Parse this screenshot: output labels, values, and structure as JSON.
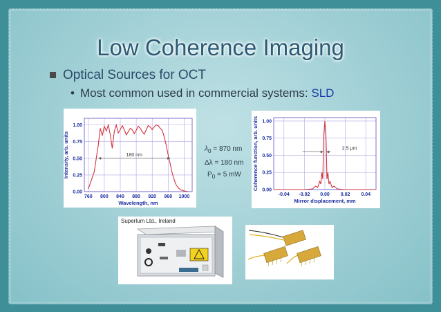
{
  "slide": {
    "title": "Low Coherence Imaging",
    "bullet1": "Optical Sources for OCT",
    "bullet2_prefix": "Most common used in commercial systems: ",
    "bullet2_highlight": "SLD"
  },
  "specs": {
    "lambda": "λ",
    "lambda_sub": "0",
    "lambda_val": " = 870 nm",
    "dlambda": "Δλ = 180 nm",
    "p": "P",
    "p_sub": "0",
    "p_val": " = 5 mW"
  },
  "photo_credit": "Superlum Ltd., Ireland",
  "colors": {
    "curve": "#d2323c",
    "axis_label": "#1b2fa0",
    "grid": "#b4a7e6"
  },
  "chart_data": [
    {
      "type": "line",
      "xlabel": "Wavelength, nm",
      "ylabel": "Intensity, arb. units",
      "xlim": [
        750,
        1020
      ],
      "ylim": [
        0,
        1.1
      ],
      "xticks": [
        "760",
        "800",
        "840",
        "880",
        "920",
        "960",
        "1000"
      ],
      "yticks": [
        "0.00",
        "0.25",
        "0.50",
        "0.75",
        "1.00"
      ],
      "annotation": "180 nm",
      "grid": true,
      "x": [
        760,
        775,
        785,
        790,
        795,
        800,
        805,
        810,
        815,
        820,
        825,
        830,
        835,
        840,
        845,
        850,
        855,
        860,
        865,
        870,
        875,
        880,
        885,
        890,
        895,
        900,
        905,
        910,
        915,
        920,
        925,
        930,
        935,
        940,
        945,
        950,
        955,
        960,
        965,
        970,
        975,
        980,
        985,
        990,
        995,
        1000,
        1010
      ],
      "y": [
        0.04,
        0.3,
        0.7,
        0.95,
        0.84,
        0.98,
        0.91,
        1.0,
        0.85,
        0.65,
        0.9,
        1.0,
        0.88,
        0.93,
        0.99,
        0.93,
        0.85,
        0.9,
        0.95,
        0.93,
        0.87,
        0.92,
        0.98,
        0.95,
        0.9,
        0.86,
        0.93,
        0.99,
        0.97,
        0.93,
        0.97,
        1.0,
        0.99,
        0.95,
        0.92,
        0.82,
        0.7,
        0.55,
        0.42,
        0.28,
        0.18,
        0.1,
        0.06,
        0.03,
        0.02,
        0.01,
        0.0
      ]
    },
    {
      "type": "line",
      "xlabel": "Mirror displacement, mm",
      "ylabel": "Coherence function, arb. units",
      "xlim": [
        -0.05,
        0.05
      ],
      "ylim": [
        0,
        1.05
      ],
      "xticks": [
        "-0.04",
        "-0.02",
        "0.00",
        "0.02",
        "0.04"
      ],
      "yticks": [
        "0.00",
        "0.25",
        "0.50",
        "0.75",
        "1.00"
      ],
      "annotation": "2.5 μm",
      "grid": true,
      "x": [
        -0.05,
        -0.02,
        -0.012,
        -0.009,
        -0.007,
        -0.005,
        -0.004,
        -0.003,
        -0.002,
        -0.0015,
        -0.001,
        0.0,
        0.001,
        0.0015,
        0.002,
        0.003,
        0.004,
        0.005,
        0.007,
        0.009,
        0.012,
        0.02,
        0.05
      ],
      "y": [
        0.0,
        0.0,
        0.01,
        0.05,
        0.03,
        0.12,
        0.08,
        0.25,
        0.15,
        0.55,
        0.8,
        1.0,
        0.8,
        0.55,
        0.15,
        0.25,
        0.08,
        0.12,
        0.03,
        0.05,
        0.01,
        0.0,
        0.0
      ]
    }
  ]
}
